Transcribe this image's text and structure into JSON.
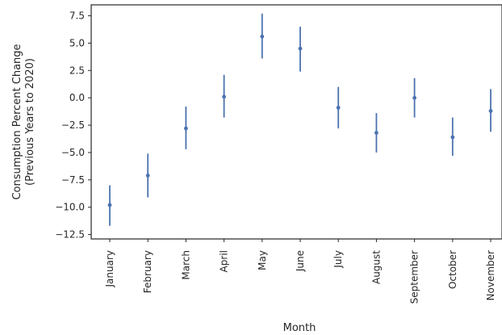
{
  "chart_data": {
    "type": "scatter",
    "title": "",
    "xlabel": "Month",
    "ylabel_lines": [
      "Consumption Percent Change",
      "(Previous Years to 2020)"
    ],
    "categories": [
      "January",
      "February",
      "March",
      "April",
      "May",
      "June",
      "July",
      "August",
      "September",
      "October",
      "November"
    ],
    "values": [
      -9.8,
      -7.1,
      -2.8,
      0.1,
      5.6,
      4.5,
      -0.9,
      -3.2,
      0.0,
      -3.6,
      -1.2
    ],
    "error_low": [
      -11.7,
      -9.1,
      -4.7,
      -1.8,
      3.6,
      2.4,
      -2.8,
      -5.0,
      -1.8,
      -5.3,
      -3.1
    ],
    "error_high": [
      -8.0,
      -5.1,
      -0.8,
      2.1,
      7.7,
      6.5,
      1.0,
      -1.4,
      1.8,
      -1.8,
      0.8
    ],
    "ylim": [
      -12.9,
      8.5
    ],
    "yticks": [
      7.5,
      5.0,
      2.5,
      0.0,
      -2.5,
      -5.0,
      -7.5,
      -10.0,
      -12.5
    ],
    "ytick_labels": [
      "7.5",
      "5.0",
      "2.5",
      "0.0",
      "−2.5",
      "−5.0",
      "−7.5",
      "−10.0",
      "−12.5"
    ],
    "grid": false,
    "colors": {
      "series": "#4c72b0",
      "frame": "#262626",
      "text": "#262626"
    }
  }
}
